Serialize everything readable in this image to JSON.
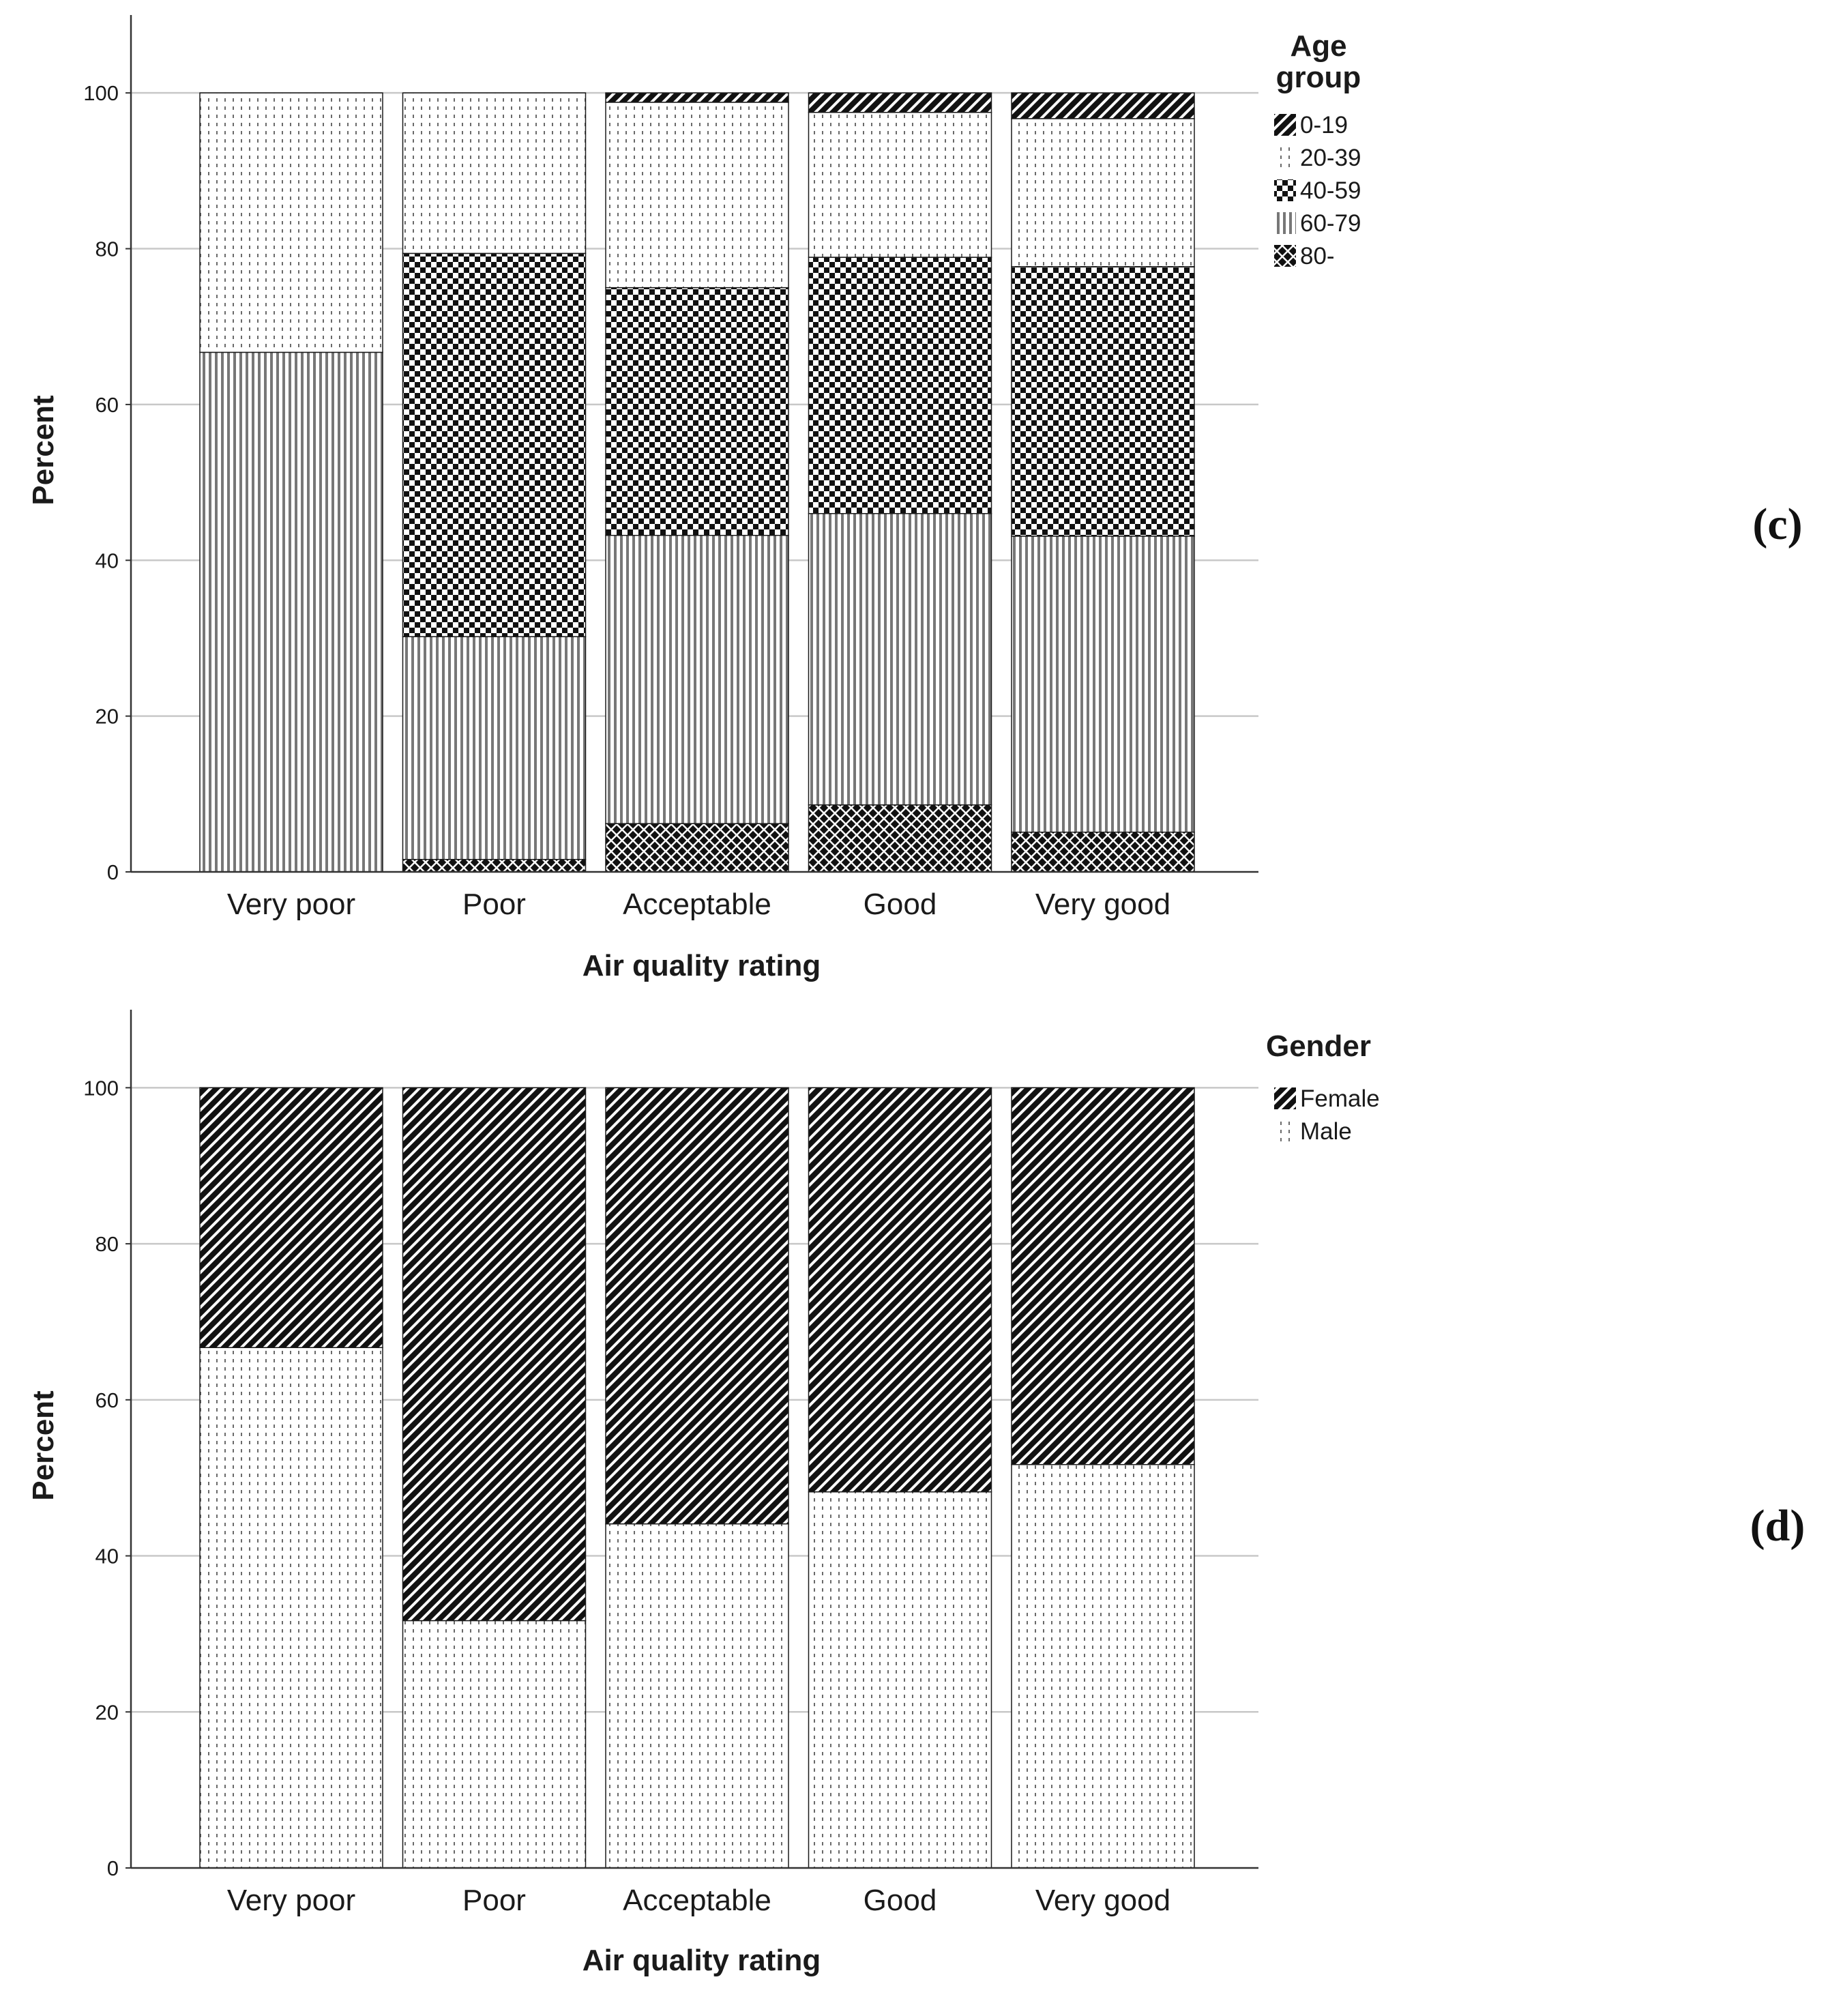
{
  "chart_data": [
    {
      "type": "bar",
      "stacked": true,
      "panel_label": "(c)",
      "xlabel": "Air quality rating",
      "ylabel": "Percent",
      "ylim": [
        0,
        110
      ],
      "yticks": [
        0,
        20,
        40,
        60,
        80,
        100
      ],
      "grid": true,
      "categories": [
        "Very poor",
        "Poor",
        "Acceptable",
        "Good",
        "Very good"
      ],
      "legend": {
        "title_lines": [
          "Age",
          "group"
        ],
        "placement": "top-right"
      },
      "series": [
        {
          "name": "80-",
          "pattern": "crosshatch",
          "values": [
            0,
            1.6,
            6.2,
            8.6,
            5.1
          ]
        },
        {
          "name": "60-79",
          "pattern": "vertical-stripes",
          "values": [
            66.7,
            28.6,
            37.0,
            37.4,
            38.0
          ]
        },
        {
          "name": "40-59",
          "pattern": "checker",
          "values": [
            0,
            49.2,
            31.8,
            32.9,
            34.6
          ]
        },
        {
          "name": "20-39",
          "pattern": "dotted-vertical",
          "values": [
            33.3,
            20.6,
            23.8,
            18.6,
            19.0
          ]
        },
        {
          "name": "0-19",
          "pattern": "diagonal",
          "values": [
            0,
            0,
            1.2,
            2.5,
            3.3
          ]
        }
      ],
      "legend_order": [
        "0-19",
        "20-39",
        "40-59",
        "60-79",
        "80-"
      ]
    },
    {
      "type": "bar",
      "stacked": true,
      "panel_label": "(d)",
      "xlabel": "Air quality rating",
      "ylabel": "Percent",
      "ylim": [
        0,
        110
      ],
      "yticks": [
        0,
        20,
        40,
        60,
        80,
        100
      ],
      "grid": true,
      "categories": [
        "Very poor",
        "Poor",
        "Acceptable",
        "Good",
        "Very good"
      ],
      "legend": {
        "title_lines": [
          "Gender"
        ],
        "placement": "top-right"
      },
      "series": [
        {
          "name": "Male",
          "pattern": "dotted-vertical",
          "values": [
            66.7,
            31.7,
            44.1,
            48.2,
            51.7
          ]
        },
        {
          "name": "Female",
          "pattern": "diagonal",
          "values": [
            33.3,
            68.3,
            55.9,
            51.8,
            48.3
          ]
        }
      ],
      "legend_order": [
        "Female",
        "Male"
      ]
    }
  ]
}
